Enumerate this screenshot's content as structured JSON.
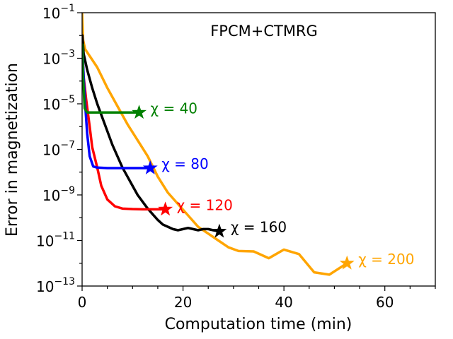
{
  "chart_data": {
    "type": "line",
    "title": "FPCM+CTMRG",
    "xlabel": "Computation time (min)",
    "ylabel": "Error in magnetization",
    "xlim": [
      0,
      70
    ],
    "ylim_log10": [
      -13,
      -1
    ],
    "y_scale": "log",
    "x_ticks": [
      0,
      20,
      40,
      60
    ],
    "x_tick_labels": [
      "0",
      "20",
      "40",
      "60"
    ],
    "y_ticks_log10": [
      -13,
      -11,
      -9,
      -7,
      -5,
      -3,
      -1
    ],
    "y_tick_labels": [
      {
        "base": "10",
        "exp": "−13"
      },
      {
        "base": "10",
        "exp": "−11"
      },
      {
        "base": "10",
        "exp": "−9"
      },
      {
        "base": "10",
        "exp": "−7"
      },
      {
        "base": "10",
        "exp": "−5"
      },
      {
        "base": "10",
        "exp": "−3"
      },
      {
        "base": "10",
        "exp": "−1"
      }
    ],
    "series": [
      {
        "name": "χ = 200",
        "label": "χ = 200",
        "color": "#ffa500",
        "points": [
          [
            0.0,
            -1.0
          ],
          [
            0.2,
            -2.2
          ],
          [
            0.6,
            -2.6
          ],
          [
            1.5,
            -2.9
          ],
          [
            3,
            -3.4
          ],
          [
            5,
            -4.3
          ],
          [
            7,
            -5.1
          ],
          [
            9,
            -5.9
          ],
          [
            11,
            -6.6
          ],
          [
            13,
            -7.3
          ],
          [
            15,
            -8.2
          ],
          [
            17,
            -8.9
          ],
          [
            19,
            -9.4
          ],
          [
            21,
            -9.9
          ],
          [
            23,
            -10.4
          ],
          [
            25,
            -10.7
          ],
          [
            27,
            -11.0
          ],
          [
            29,
            -11.3
          ],
          [
            31,
            -11.46
          ],
          [
            34,
            -11.48
          ],
          [
            37,
            -11.78
          ],
          [
            40,
            -11.4
          ],
          [
            43,
            -11.6
          ],
          [
            46,
            -12.4
          ],
          [
            49,
            -12.5
          ],
          [
            52.5,
            -12.0
          ]
        ],
        "end_marker": [
          52.5,
          -12.0
        ]
      },
      {
        "name": "χ = 160",
        "label": "χ = 160",
        "color": "#000000",
        "points": [
          [
            0.05,
            -2.0
          ],
          [
            0.3,
            -2.8
          ],
          [
            1,
            -3.5
          ],
          [
            2,
            -4.3
          ],
          [
            3,
            -5.0
          ],
          [
            4,
            -5.6
          ],
          [
            5,
            -6.2
          ],
          [
            6,
            -6.8
          ],
          [
            7,
            -7.3
          ],
          [
            8,
            -7.8
          ],
          [
            9,
            -8.2
          ],
          [
            10,
            -8.6
          ],
          [
            11,
            -9.0
          ],
          [
            12,
            -9.3
          ],
          [
            13,
            -9.6
          ],
          [
            14,
            -9.85
          ],
          [
            15,
            -10.1
          ],
          [
            16,
            -10.3
          ],
          [
            17,
            -10.4
          ],
          [
            18,
            -10.5
          ],
          [
            19,
            -10.55
          ],
          [
            20,
            -10.5
          ],
          [
            21,
            -10.45
          ],
          [
            22,
            -10.5
          ],
          [
            23,
            -10.55
          ],
          [
            24,
            -10.5
          ],
          [
            25,
            -10.5
          ],
          [
            26,
            -10.55
          ],
          [
            27.2,
            -10.6
          ]
        ],
        "end_marker": [
          27.2,
          -10.6
        ]
      },
      {
        "name": "χ = 120",
        "label": "χ = 120",
        "color": "#ff0000",
        "points": [
          [
            0.05,
            -2.5
          ],
          [
            0.3,
            -3.8
          ],
          [
            0.8,
            -4.8
          ],
          [
            1.5,
            -6.0
          ],
          [
            2,
            -6.9
          ],
          [
            3,
            -7.8
          ],
          [
            3.8,
            -8.6
          ],
          [
            5,
            -9.2
          ],
          [
            6.5,
            -9.5
          ],
          [
            8,
            -9.6
          ],
          [
            10,
            -9.62
          ],
          [
            12,
            -9.63
          ],
          [
            14,
            -9.63
          ],
          [
            16.5,
            -9.63
          ]
        ],
        "end_marker": [
          16.5,
          -9.63
        ]
      },
      {
        "name": "χ = 80",
        "label": "χ = 80",
        "color": "#0000ff",
        "points": [
          [
            0.05,
            -2.5
          ],
          [
            0.3,
            -3.8
          ],
          [
            0.6,
            -5.0
          ],
          [
            1,
            -6.3
          ],
          [
            1.5,
            -7.3
          ],
          [
            2.2,
            -7.75
          ],
          [
            3,
            -7.8
          ],
          [
            5,
            -7.82
          ],
          [
            8,
            -7.82
          ],
          [
            10.5,
            -7.82
          ],
          [
            13.5,
            -7.82
          ]
        ],
        "end_marker": [
          13.5,
          -7.82
        ]
      },
      {
        "name": "χ = 40",
        "label": "χ = 40",
        "color": "#008000",
        "points": [
          [
            0.05,
            -2.4
          ],
          [
            0.2,
            -3.8
          ],
          [
            0.5,
            -5.2
          ],
          [
            1,
            -5.38
          ],
          [
            3,
            -5.38
          ],
          [
            6,
            -5.38
          ],
          [
            9,
            -5.38
          ],
          [
            11.3,
            -5.38
          ]
        ],
        "end_marker": [
          11.3,
          -5.38
        ]
      }
    ]
  }
}
